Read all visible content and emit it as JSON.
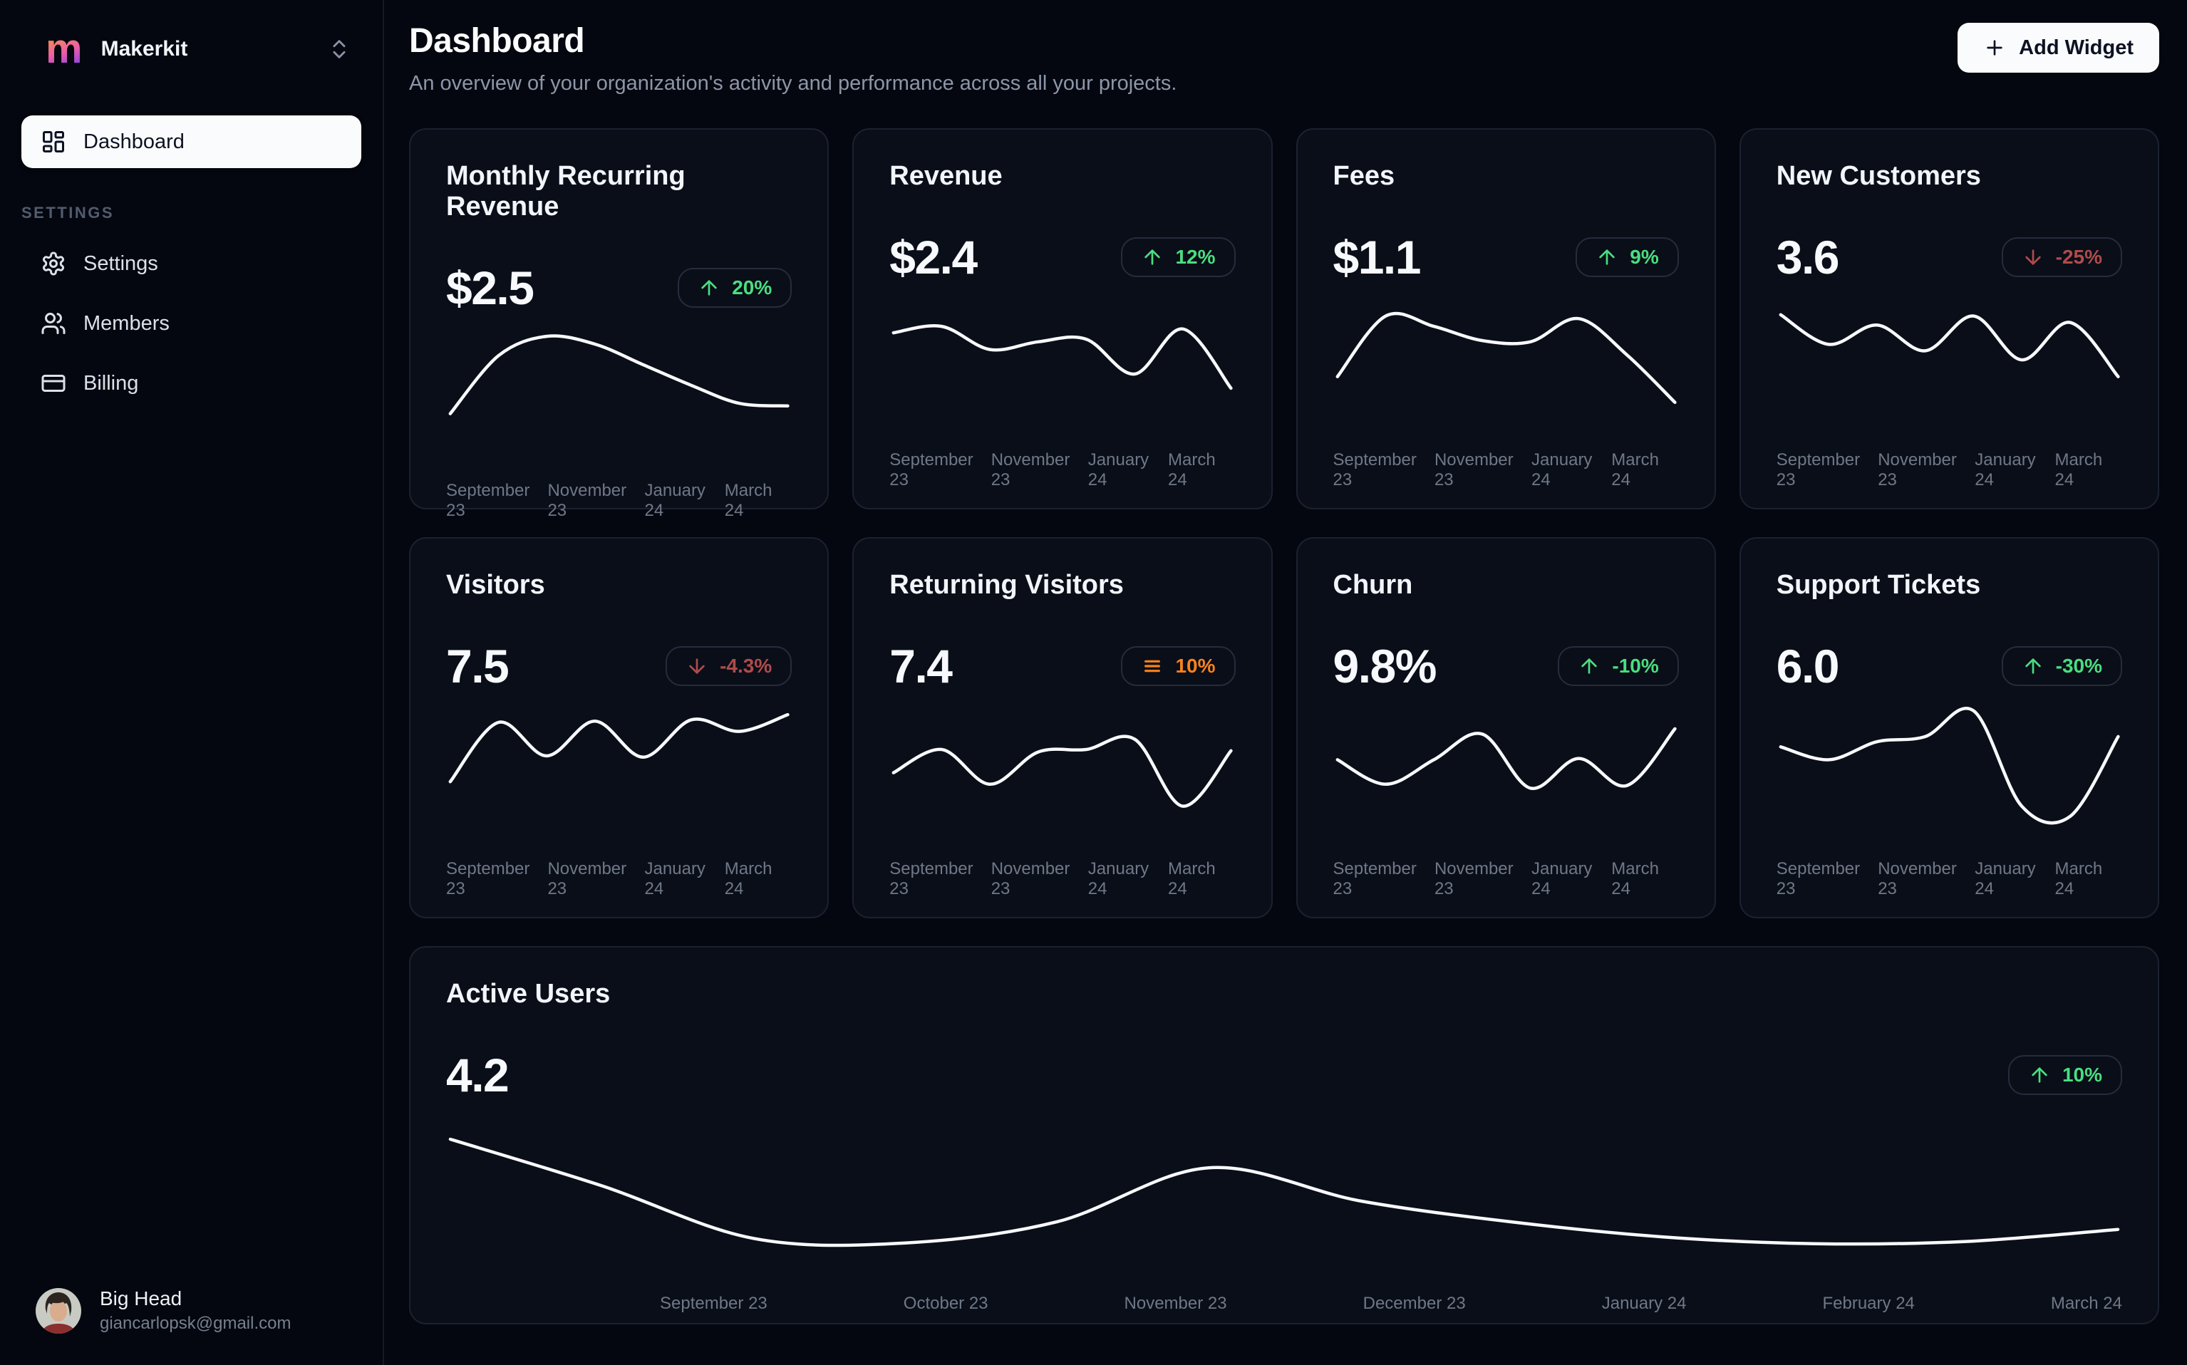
{
  "sidebar": {
    "brand": {
      "logo_letter": "m",
      "name": "Makerkit"
    },
    "nav": [
      {
        "label": "Dashboard",
        "icon": "dashboard-grid-icon",
        "active": true
      }
    ],
    "settings_heading": "SETTINGS",
    "settings_nav": [
      {
        "label": "Settings",
        "icon": "gear-icon"
      },
      {
        "label": "Members",
        "icon": "users-icon"
      },
      {
        "label": "Billing",
        "icon": "credit-card-icon"
      }
    ],
    "user": {
      "name": "Big Head",
      "email": "giancarlopsk@gmail.com"
    }
  },
  "header": {
    "title": "Dashboard",
    "subtitle": "An overview of your organization's activity and performance across all your projects.",
    "add_widget_label": "Add Widget"
  },
  "colors": {
    "page_bg": "#04070f",
    "card_bg": "#0a0e18",
    "card_border": "#1b2130",
    "line": "#f7f9fc",
    "accent_green": "#4ade80",
    "accent_red": "#b04b4b",
    "accent_orange": "#f9821c"
  },
  "cards": [
    {
      "title": "Monthly Recurring Revenue",
      "value": "$2.5",
      "badge": {
        "label": "20%",
        "direction": "up",
        "color": "green"
      }
    },
    {
      "title": "Revenue",
      "value": "$2.4",
      "badge": {
        "label": "12%",
        "direction": "up",
        "color": "green"
      }
    },
    {
      "title": "Fees",
      "value": "$1.1",
      "badge": {
        "label": "9%",
        "direction": "up",
        "color": "green"
      }
    },
    {
      "title": "New Customers",
      "value": "3.6",
      "badge": {
        "label": "-25%",
        "direction": "down",
        "color": "red"
      }
    },
    {
      "title": "Visitors",
      "value": "7.5",
      "badge": {
        "label": "-4.3%",
        "direction": "down",
        "color": "red"
      }
    },
    {
      "title": "Returning Visitors",
      "value": "7.4",
      "badge": {
        "label": "10%",
        "direction": "neutral",
        "color": "orange"
      }
    },
    {
      "title": "Churn",
      "value": "9.8%",
      "badge": {
        "label": "-10%",
        "direction": "up",
        "color": "green"
      }
    },
    {
      "title": "Support Tickets",
      "value": "6.0",
      "badge": {
        "label": "-30%",
        "direction": "up",
        "color": "green"
      }
    },
    {
      "title": "Active Users",
      "value": "4.2",
      "badge": {
        "label": "10%",
        "direction": "up",
        "color": "green"
      },
      "wide": true
    }
  ],
  "chart_data": [
    {
      "type": "line",
      "title": "Monthly Recurring Revenue",
      "x_labels": [
        "September 23",
        "November 23",
        "January 24",
        "March 24"
      ],
      "value_scale": "relative sparkline height 0-1 (no y-axis shown)",
      "values": [
        0.3,
        0.75,
        0.9,
        0.84,
        0.68,
        0.52,
        0.38,
        0.36
      ]
    },
    {
      "type": "line",
      "title": "Revenue",
      "x_labels": [
        "September 23",
        "November 23",
        "January 24",
        "March 24"
      ],
      "value_scale": "relative sparkline height 0-1 (no y-axis shown)",
      "values": [
        0.69,
        0.74,
        0.56,
        0.62,
        0.64,
        0.37,
        0.72,
        0.26
      ]
    },
    {
      "type": "line",
      "title": "Fees",
      "x_labels": [
        "September 23",
        "November 23",
        "January 24",
        "March 24"
      ],
      "value_scale": "relative sparkline height 0-1 (no y-axis shown)",
      "values": [
        0.35,
        0.82,
        0.74,
        0.63,
        0.62,
        0.8,
        0.52,
        0.15
      ]
    },
    {
      "type": "line",
      "title": "New Customers",
      "x_labels": [
        "September 23",
        "November 23",
        "January 24",
        "March 24"
      ],
      "value_scale": "relative sparkline height 0-1 (no y-axis shown)",
      "values": [
        0.83,
        0.6,
        0.75,
        0.55,
        0.82,
        0.48,
        0.77,
        0.35
      ]
    },
    {
      "type": "line",
      "title": "Visitors",
      "x_labels": [
        "September 23",
        "November 23",
        "January 24",
        "March 24"
      ],
      "value_scale": "relative sparkline height 0-1 (no y-axis shown)",
      "values": [
        0.38,
        0.84,
        0.58,
        0.85,
        0.57,
        0.86,
        0.77,
        0.9
      ]
    },
    {
      "type": "line",
      "title": "Returning Visitors",
      "x_labels": [
        "September 23",
        "November 23",
        "January 24",
        "March 24"
      ],
      "value_scale": "relative sparkline height 0-1 (no y-axis shown)",
      "values": [
        0.45,
        0.63,
        0.36,
        0.61,
        0.63,
        0.71,
        0.19,
        0.62
      ]
    },
    {
      "type": "line",
      "title": "Churn",
      "x_labels": [
        "September 23",
        "November 23",
        "January 24",
        "March 24"
      ],
      "value_scale": "relative sparkline height 0-1 (no y-axis shown)",
      "values": [
        0.55,
        0.36,
        0.55,
        0.75,
        0.33,
        0.56,
        0.35,
        0.79
      ]
    },
    {
      "type": "line",
      "title": "Support Tickets",
      "x_labels": [
        "September 23",
        "November 23",
        "January 24",
        "March 24"
      ],
      "value_scale": "relative sparkline height 0-1 (no y-axis shown)",
      "values": [
        0.65,
        0.55,
        0.69,
        0.73,
        0.93,
        0.19,
        0.11,
        0.73
      ]
    },
    {
      "type": "line",
      "title": "Active Users",
      "x_labels": [
        "September 23",
        "October 23",
        "November 23",
        "December 23",
        "January 24",
        "February 24",
        "March 24"
      ],
      "value_scale": "relative sparkline height 0-1 (no y-axis shown)",
      "values": [
        0.81,
        0.5,
        0.15,
        0.12,
        0.26,
        0.62,
        0.4,
        0.26,
        0.16,
        0.115,
        0.13,
        0.21
      ]
    }
  ]
}
